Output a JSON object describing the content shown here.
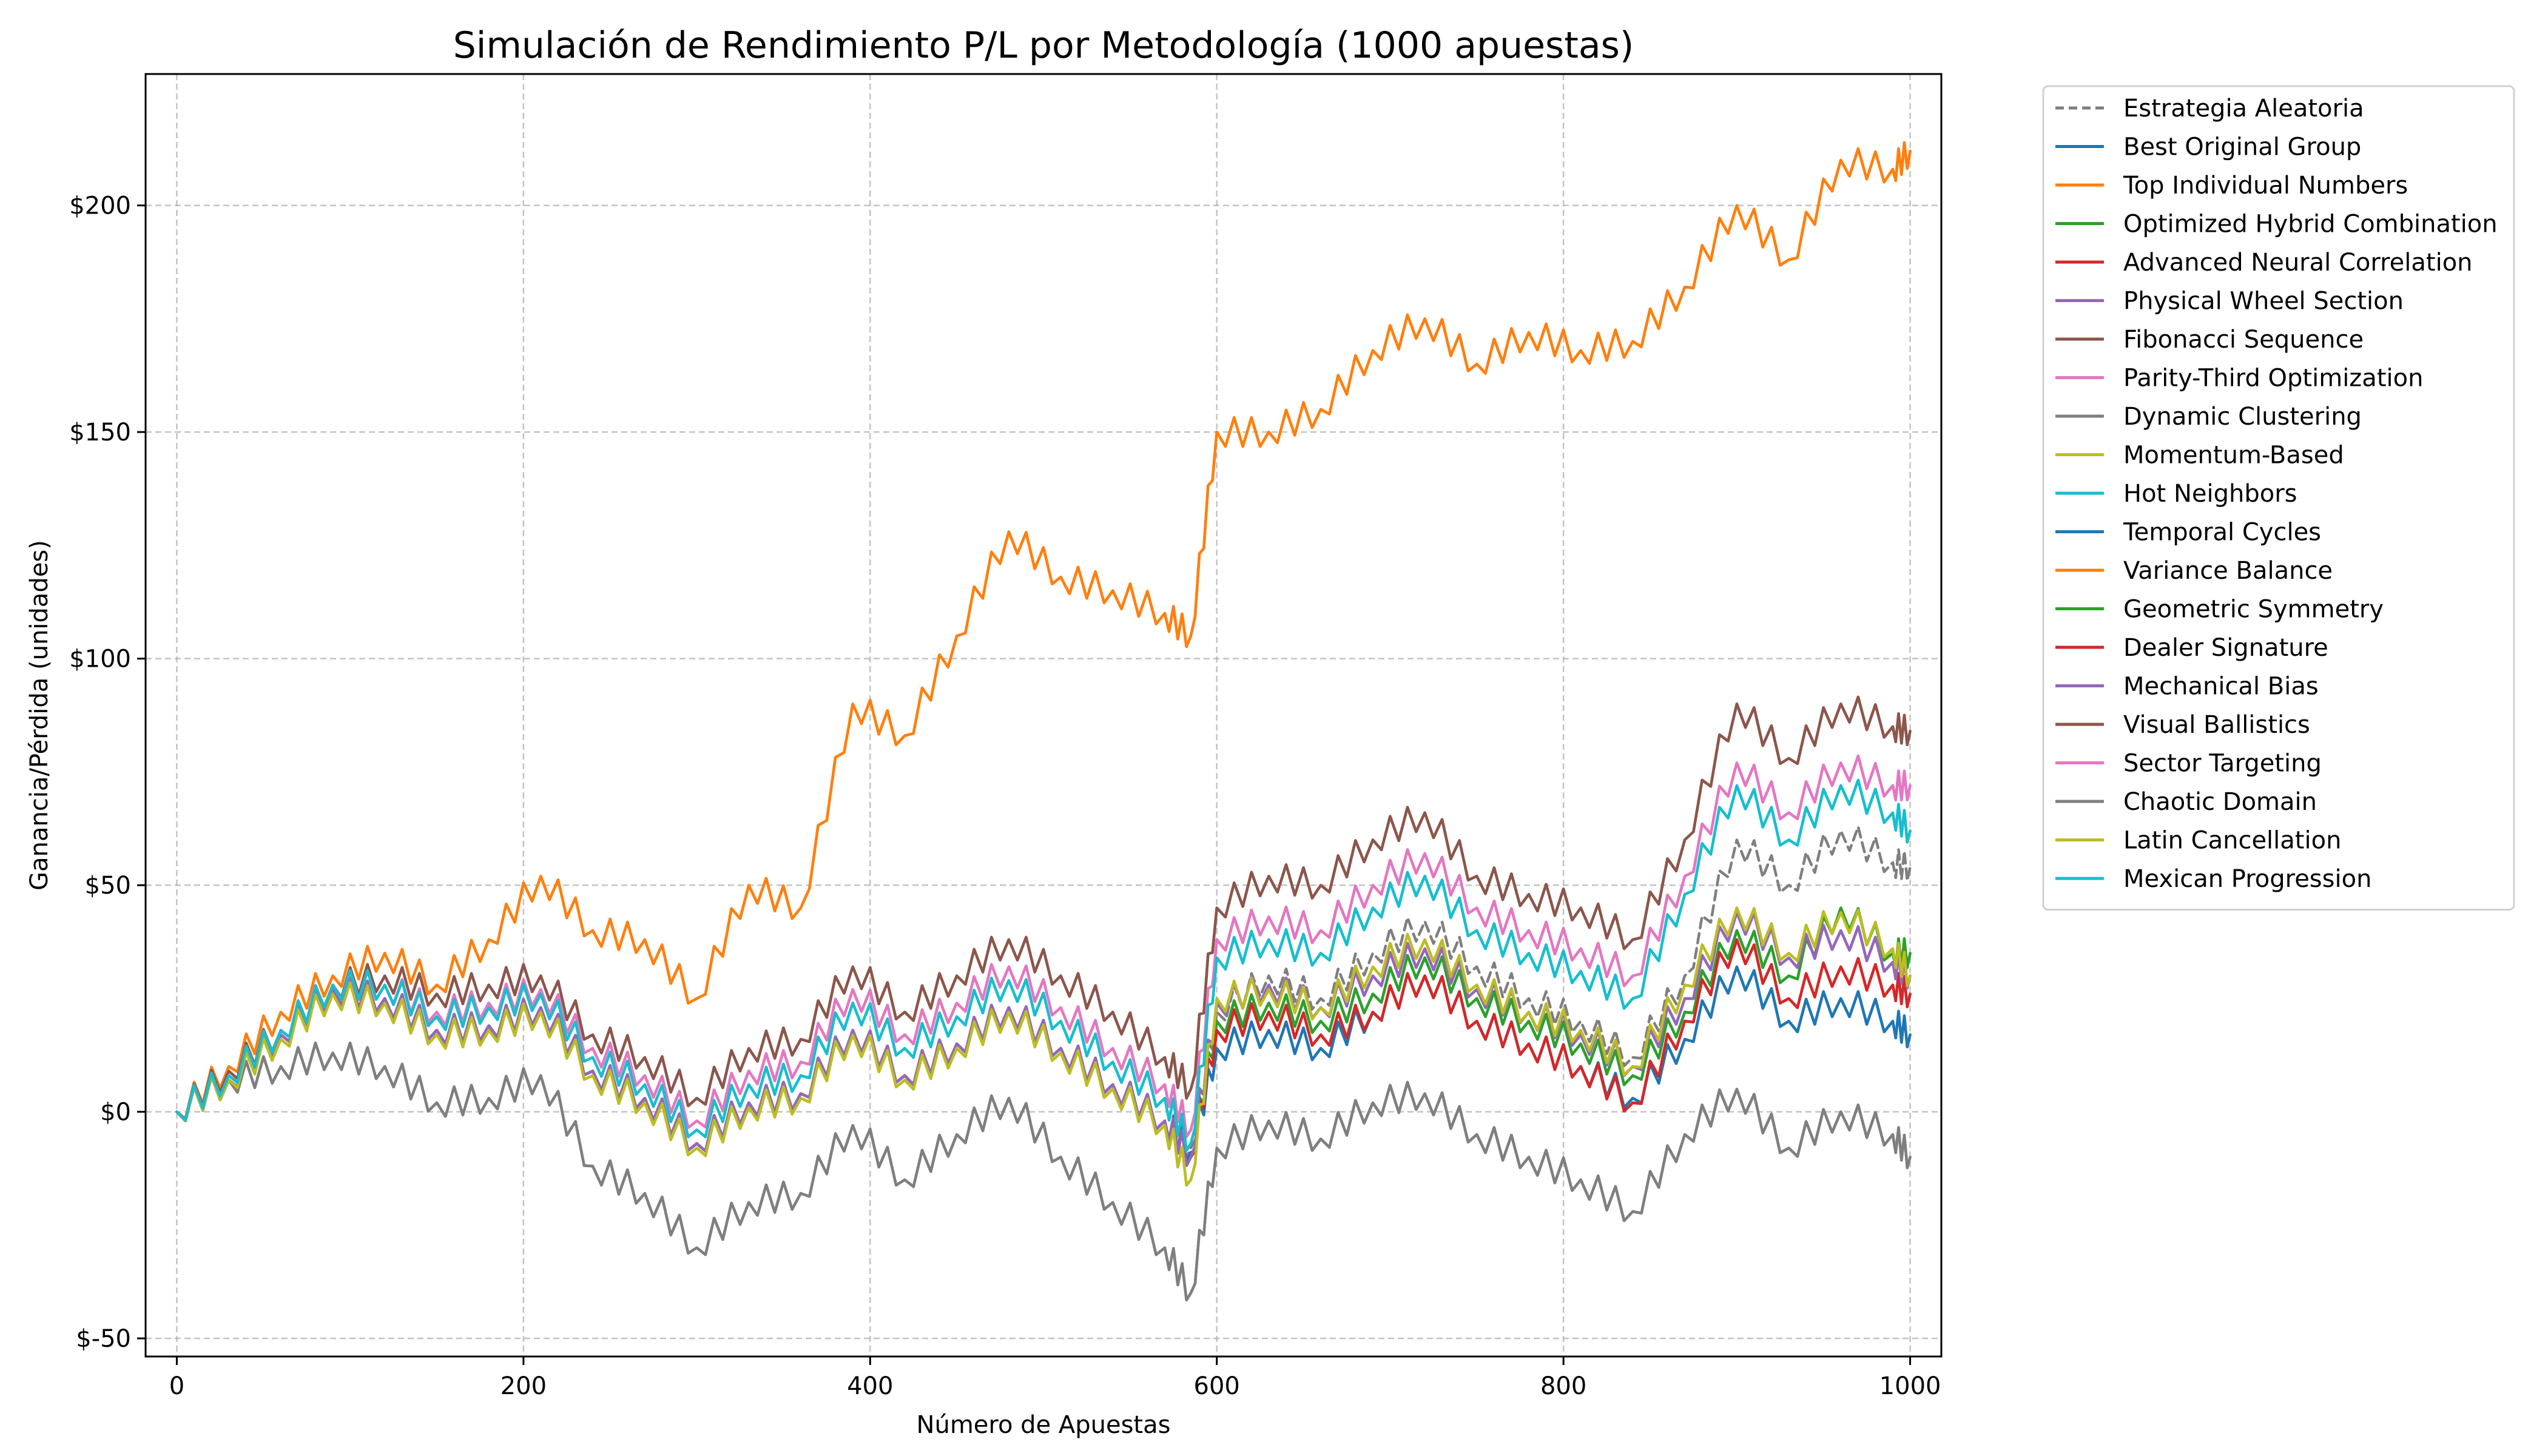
{
  "chart_data": {
    "type": "line",
    "title": "Simulación de Rendimiento P/L por Metodología (1000 apuestas)",
    "xlabel": "Número de Apuestas",
    "ylabel": "Ganancia/Pérdida (unidades)",
    "xlim": [
      -18,
      1018
    ],
    "ylim": [
      -54,
      229
    ],
    "xticks": [
      0,
      200,
      400,
      600,
      800,
      1000
    ],
    "xtick_labels": [
      "0",
      "200",
      "400",
      "600",
      "800",
      "1000"
    ],
    "yticks": [
      -50,
      0,
      50,
      100,
      150,
      200
    ],
    "ytick_labels": [
      "$-50",
      "$0",
      "$50",
      "$100",
      "$150",
      "$200"
    ],
    "grid": true,
    "legend_position": "outside upper right",
    "x": [
      0,
      30,
      60,
      90,
      120,
      150,
      180,
      210,
      240,
      270,
      300,
      330,
      360,
      390,
      420,
      450,
      480,
      510,
      540,
      570,
      585,
      600,
      630,
      660,
      690,
      720,
      750,
      780,
      810,
      840,
      870,
      900,
      930,
      960,
      990,
      1000
    ],
    "series": [
      {
        "name": "Estrategia Aleatoria",
        "color": "#7f7f7f",
        "dashed": true,
        "values": [
          0,
          7,
          17,
          27,
          25,
          18,
          19,
          23,
          9,
          3,
          -7,
          2,
          4,
          18,
          8,
          15,
          23,
          14,
          6,
          -2,
          -8,
          22,
          30,
          25,
          35,
          42,
          32,
          25,
          20,
          12,
          30,
          60,
          50,
          62,
          55,
          54
        ]
      },
      {
        "name": "Best Original Group",
        "color": "#1f77b4",
        "values": [
          0,
          7,
          17,
          27,
          25,
          18,
          19,
          23,
          9,
          3,
          -7,
          2,
          4,
          18,
          8,
          15,
          23,
          14,
          6,
          -2,
          -9,
          14,
          18,
          14,
          22,
          30,
          20,
          15,
          10,
          3,
          16,
          32,
          20,
          25,
          20,
          17
        ]
      },
      {
        "name": "Top Individual Numbers",
        "color": "#ff7f0e",
        "values": [
          0,
          10,
          22,
          30,
          35,
          28,
          38,
          52,
          40,
          38,
          25,
          50,
          45,
          90,
          83,
          105,
          128,
          118,
          115,
          110,
          105,
          150,
          150,
          155,
          168,
          175,
          165,
          172,
          168,
          170,
          182,
          200,
          188,
          210,
          208,
          212
        ]
      },
      {
        "name": "Optimized Hybrid Combination",
        "color": "#2ca02c",
        "values": [
          0,
          7,
          17,
          27,
          25,
          18,
          19,
          23,
          9,
          3,
          -7,
          2,
          4,
          18,
          8,
          15,
          23,
          14,
          6,
          -2,
          -10,
          20,
          24,
          20,
          26,
          34,
          25,
          20,
          15,
          8,
          22,
          40,
          30,
          45,
          35,
          35
        ]
      },
      {
        "name": "Advanced Neural Correlation",
        "color": "#d62728",
        "values": [
          0,
          7,
          17,
          27,
          25,
          18,
          19,
          23,
          9,
          3,
          -7,
          2,
          4,
          18,
          8,
          15,
          23,
          14,
          6,
          -2,
          -10,
          18,
          22,
          17,
          22,
          30,
          20,
          15,
          10,
          2,
          20,
          38,
          25,
          32,
          28,
          26
        ]
      },
      {
        "name": "Physical Wheel Section",
        "color": "#9467bd",
        "values": [
          0,
          7,
          17,
          27,
          25,
          18,
          19,
          23,
          9,
          3,
          -7,
          2,
          4,
          18,
          8,
          15,
          23,
          14,
          6,
          -2,
          -10,
          24,
          28,
          23,
          30,
          36,
          27,
          22,
          17,
          10,
          25,
          44,
          34,
          40,
          33,
          30
        ]
      },
      {
        "name": "Fibonacci Sequence",
        "color": "#8c564b",
        "values": [
          0,
          9,
          18,
          28,
          30,
          26,
          28,
          30,
          17,
          12,
          3,
          14,
          16,
          32,
          22,
          30,
          38,
          30,
          22,
          12,
          5,
          45,
          52,
          50,
          60,
          66,
          52,
          48,
          45,
          38,
          60,
          90,
          78,
          90,
          85,
          84
        ]
      },
      {
        "name": "Parity-Third Optimization",
        "color": "#e377c2",
        "values": [
          0,
          8,
          18,
          28,
          28,
          22,
          24,
          27,
          14,
          8,
          -2,
          9,
          11,
          27,
          17,
          24,
          32,
          23,
          14,
          6,
          -4,
          38,
          43,
          40,
          50,
          57,
          45,
          40,
          36,
          30,
          52,
          77,
          66,
          77,
          72,
          72
        ]
      },
      {
        "name": "Dynamic Clustering",
        "color": "#7f7f7f",
        "values": [
          0,
          7,
          10,
          13,
          10,
          2,
          3,
          8,
          -12,
          -18,
          -30,
          -20,
          -18,
          -3,
          -15,
          -5,
          3,
          -10,
          -20,
          -30,
          -40,
          -8,
          -2,
          -6,
          2,
          4,
          -5,
          -10,
          -15,
          -22,
          -5,
          5,
          -8,
          0,
          -5,
          -10
        ]
      },
      {
        "name": "Momentum-Based",
        "color": "#bcbd22",
        "values": [
          0,
          7,
          16,
          26,
          24,
          17,
          18,
          22,
          8,
          2,
          -8,
          1,
          3,
          17,
          7,
          14,
          22,
          13,
          5,
          -3,
          -15,
          25,
          27,
          23,
          32,
          38,
          28,
          22,
          18,
          10,
          28,
          45,
          35,
          44,
          36,
          30
        ]
      },
      {
        "name": "Hot Neighbors",
        "color": "#17becf",
        "values": [
          0,
          8,
          18,
          28,
          28,
          21,
          23,
          26,
          12,
          6,
          -4,
          6,
          8,
          24,
          14,
          21,
          29,
          20,
          11,
          3,
          -7,
          34,
          38,
          35,
          45,
          52,
          40,
          35,
          31,
          25,
          48,
          72,
          60,
          72,
          66,
          62
        ]
      },
      {
        "name": "Temporal Cycles",
        "color": "#1f77b4",
        "values": [
          0,
          7,
          17,
          27,
          25,
          18,
          19,
          23,
          9,
          3,
          -7,
          2,
          4,
          18,
          8,
          15,
          23,
          14,
          6,
          -2,
          -9,
          14,
          18,
          14,
          22,
          30,
          20,
          15,
          10,
          3,
          16,
          32,
          20,
          25,
          20,
          17
        ]
      },
      {
        "name": "Variance Balance",
        "color": "#ff7f0e",
        "values": [
          0,
          10,
          22,
          30,
          35,
          28,
          38,
          52,
          40,
          38,
          25,
          50,
          45,
          90,
          83,
          105,
          128,
          118,
          115,
          110,
          105,
          150,
          150,
          155,
          168,
          175,
          165,
          172,
          168,
          170,
          182,
          200,
          188,
          210,
          208,
          212
        ]
      },
      {
        "name": "Geometric Symmetry",
        "color": "#2ca02c",
        "values": [
          0,
          7,
          17,
          27,
          25,
          18,
          19,
          23,
          9,
          3,
          -7,
          2,
          4,
          18,
          8,
          15,
          23,
          14,
          6,
          -2,
          -10,
          20,
          24,
          20,
          26,
          34,
          25,
          20,
          15,
          8,
          22,
          40,
          30,
          45,
          35,
          35
        ]
      },
      {
        "name": "Dealer Signature",
        "color": "#d62728",
        "values": [
          0,
          7,
          17,
          27,
          25,
          18,
          19,
          23,
          9,
          3,
          -7,
          2,
          4,
          18,
          8,
          15,
          23,
          14,
          6,
          -2,
          -10,
          18,
          22,
          17,
          22,
          30,
          20,
          15,
          10,
          2,
          20,
          38,
          25,
          32,
          28,
          26
        ]
      },
      {
        "name": "Mechanical Bias",
        "color": "#9467bd",
        "values": [
          0,
          7,
          17,
          27,
          25,
          18,
          19,
          23,
          9,
          3,
          -7,
          2,
          4,
          18,
          8,
          15,
          23,
          14,
          6,
          -2,
          -10,
          24,
          28,
          23,
          30,
          36,
          27,
          22,
          17,
          10,
          25,
          44,
          34,
          40,
          33,
          30
        ]
      },
      {
        "name": "Visual Ballistics",
        "color": "#8c564b",
        "values": [
          0,
          9,
          18,
          28,
          30,
          26,
          28,
          30,
          17,
          12,
          3,
          14,
          16,
          32,
          22,
          30,
          38,
          30,
          22,
          12,
          5,
          45,
          52,
          50,
          60,
          66,
          52,
          48,
          45,
          38,
          60,
          90,
          78,
          90,
          85,
          84
        ]
      },
      {
        "name": "Sector Targeting",
        "color": "#e377c2",
        "values": [
          0,
          8,
          18,
          28,
          28,
          22,
          24,
          27,
          14,
          8,
          -2,
          9,
          11,
          27,
          17,
          24,
          32,
          23,
          14,
          6,
          -4,
          38,
          43,
          40,
          50,
          57,
          45,
          40,
          36,
          30,
          52,
          77,
          66,
          77,
          72,
          72
        ]
      },
      {
        "name": "Chaotic Domain",
        "color": "#7f7f7f",
        "values": [
          0,
          7,
          10,
          13,
          10,
          2,
          3,
          8,
          -12,
          -18,
          -30,
          -20,
          -18,
          -3,
          -15,
          -5,
          3,
          -10,
          -20,
          -30,
          -40,
          -8,
          -2,
          -6,
          2,
          4,
          -5,
          -10,
          -15,
          -22,
          -5,
          5,
          -8,
          0,
          -5,
          -10
        ]
      },
      {
        "name": "Latin Cancellation",
        "color": "#bcbd22",
        "values": [
          0,
          7,
          16,
          26,
          24,
          17,
          18,
          22,
          8,
          2,
          -8,
          1,
          3,
          17,
          7,
          14,
          22,
          13,
          5,
          -3,
          -15,
          25,
          27,
          23,
          32,
          38,
          28,
          22,
          18,
          10,
          28,
          45,
          35,
          44,
          36,
          30
        ]
      },
      {
        "name": "Mexican Progression",
        "color": "#17becf",
        "values": [
          0,
          8,
          18,
          28,
          28,
          21,
          23,
          26,
          12,
          6,
          -4,
          6,
          8,
          24,
          14,
          21,
          29,
          20,
          11,
          3,
          -7,
          34,
          38,
          35,
          45,
          52,
          40,
          35,
          31,
          25,
          48,
          72,
          60,
          72,
          66,
          62
        ]
      }
    ]
  }
}
